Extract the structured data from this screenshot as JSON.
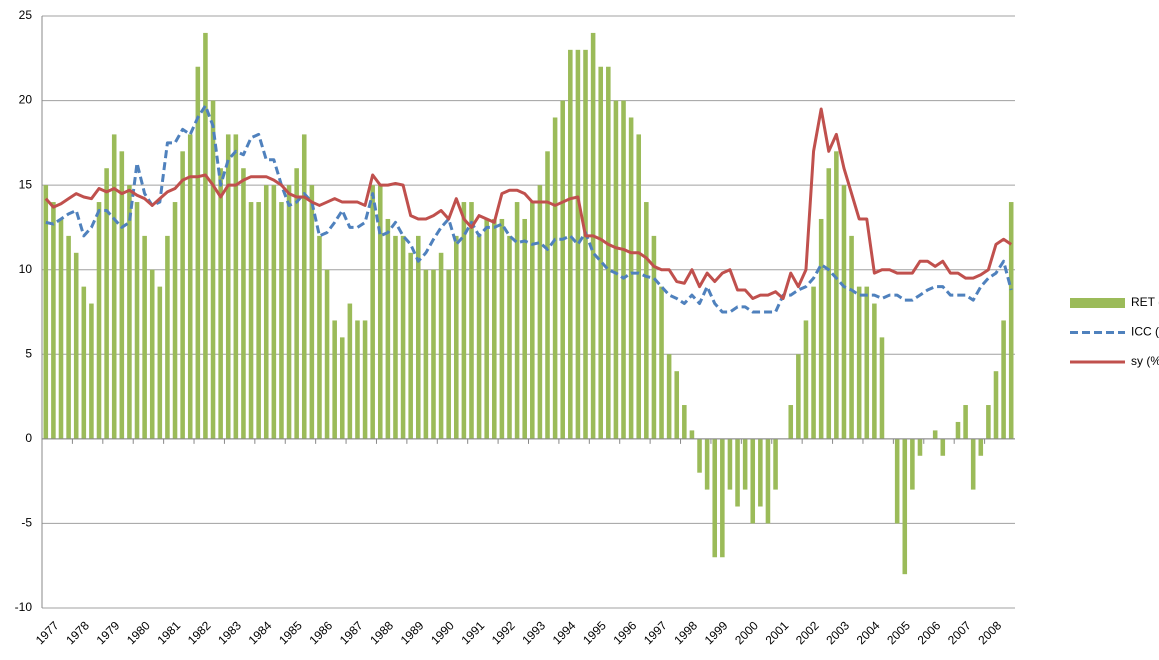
{
  "chart_data": {
    "type": "bar_line",
    "categories": [
      "1977",
      null,
      null,
      null,
      "1978",
      null,
      null,
      null,
      "1979",
      null,
      null,
      null,
      "1980",
      null,
      null,
      null,
      "1981",
      null,
      null,
      null,
      "1982",
      null,
      null,
      null,
      "1983",
      null,
      null,
      null,
      "1984",
      null,
      null,
      null,
      "1985",
      null,
      null,
      null,
      "1986",
      null,
      null,
      null,
      "1987",
      null,
      null,
      null,
      "1988",
      null,
      null,
      null,
      "1989",
      null,
      null,
      null,
      "1990",
      null,
      null,
      null,
      "1991",
      null,
      null,
      null,
      "1992",
      null,
      null,
      null,
      "1993",
      null,
      null,
      null,
      "1994",
      null,
      null,
      null,
      "1995",
      null,
      null,
      null,
      "1996",
      null,
      null,
      null,
      "1997",
      null,
      null,
      null,
      "1998",
      null,
      null,
      null,
      "1999",
      null,
      null,
      null,
      "2000",
      null,
      null,
      null,
      "2001",
      null,
      null,
      null,
      "2002",
      null,
      null,
      null,
      "2003",
      null,
      null,
      null,
      "2004",
      null,
      null,
      null,
      "2005",
      null,
      null,
      null,
      "2006",
      null,
      null,
      null,
      "2007",
      null,
      null,
      null,
      "2008",
      null,
      null,
      null
    ],
    "series": [
      {
        "name": "RET (%)",
        "kind": "bar",
        "color": "#9bbb59",
        "values": [
          15,
          14,
          13,
          12,
          11,
          9,
          8,
          14,
          16,
          18,
          17,
          15,
          14,
          12,
          10,
          9,
          12,
          14,
          17,
          18,
          22,
          24,
          20,
          16,
          18,
          18,
          16,
          14,
          14,
          15,
          15,
          14,
          15,
          16,
          18,
          15,
          12,
          10,
          7,
          6,
          8,
          7,
          7,
          15,
          15,
          13,
          12,
          12,
          11,
          12,
          10,
          10,
          11,
          10,
          12,
          14,
          14,
          12,
          13,
          13,
          13,
          12,
          14,
          13,
          14,
          15,
          17,
          19,
          20,
          23,
          23,
          23,
          24,
          22,
          22,
          20,
          20,
          19,
          18,
          14,
          12,
          9,
          5,
          4,
          2,
          0.5,
          -2,
          -3,
          -7,
          -7,
          -3,
          -4,
          -3,
          -5,
          -4,
          -5,
          -3,
          0,
          2,
          5,
          7,
          9,
          13,
          16,
          17,
          15,
          12,
          9,
          9,
          8,
          6,
          0,
          -5,
          -8,
          -3,
          -1,
          0,
          0.5,
          -1,
          0,
          1,
          2,
          -3,
          -1,
          2,
          4,
          7,
          14
        ]
      },
      {
        "name": "ICC (%)",
        "kind": "line",
        "dash": true,
        "color": "#4f81bd",
        "values": [
          12.8,
          12.7,
          13.0,
          13.3,
          13.5,
          12.0,
          12.5,
          13.5,
          13.5,
          13.0,
          12.5,
          12.8,
          16.3,
          14.5,
          13.8,
          14.0,
          17.5,
          17.5,
          18.3,
          18.0,
          19.0,
          19.7,
          18.5,
          15.0,
          16.5,
          17.0,
          16.8,
          17.8,
          18.0,
          16.5,
          16.5,
          15.0,
          13.8,
          14.0,
          14.5,
          14.0,
          12.0,
          12.2,
          12.8,
          13.5,
          12.5,
          12.5,
          12.8,
          14.5,
          12.0,
          12.2,
          12.8,
          12.0,
          11.5,
          10.5,
          11.0,
          11.8,
          12.5,
          13.0,
          11.5,
          12.0,
          12.8,
          12.0,
          12.5,
          12.5,
          12.7,
          12.0,
          11.6,
          11.7,
          11.5,
          11.6,
          11.2,
          11.8,
          11.8,
          12.0,
          11.5,
          12.2,
          11.0,
          10.5,
          10.0,
          9.8,
          9.5,
          9.8,
          9.8,
          9.6,
          9.5,
          9.0,
          8.5,
          8.3,
          8.0,
          8.5,
          8.0,
          9.0,
          8.0,
          7.5,
          7.5,
          7.8,
          7.8,
          7.5,
          7.5,
          7.5,
          7.5,
          8.5,
          8.5,
          8.8,
          9.0,
          9.5,
          10.3,
          10.0,
          9.5,
          9.0,
          8.8,
          8.5,
          8.5,
          8.5,
          8.3,
          8.5,
          8.5,
          8.2,
          8.2,
          8.5,
          8.8,
          9.0,
          9.0,
          8.5,
          8.5,
          8.5,
          8.2,
          9.0,
          9.5,
          9.8,
          10.5,
          8.8
        ]
      },
      {
        "name": "sy (%)",
        "kind": "line",
        "color": "#c0504d",
        "values": [
          14.2,
          13.7,
          13.9,
          14.2,
          14.5,
          14.3,
          14.2,
          14.8,
          14.6,
          14.8,
          14.5,
          14.7,
          14.4,
          14.2,
          13.8,
          14.2,
          14.6,
          14.8,
          15.3,
          15.5,
          15.5,
          15.6,
          15.0,
          14.3,
          15.0,
          15.0,
          15.3,
          15.5,
          15.5,
          15.5,
          15.3,
          15.0,
          14.5,
          14.3,
          14.3,
          14.0,
          13.8,
          14.0,
          14.2,
          14.0,
          14.0,
          14.0,
          13.8,
          15.6,
          15.0,
          15.0,
          15.1,
          15.0,
          13.2,
          13.0,
          13.0,
          13.2,
          13.5,
          13.0,
          14.2,
          13.0,
          12.5,
          13.2,
          13.0,
          12.8,
          14.5,
          14.7,
          14.7,
          14.5,
          14.0,
          14.0,
          14.0,
          13.8,
          14.0,
          14.2,
          14.3,
          12.0,
          12.0,
          11.8,
          11.5,
          11.3,
          11.2,
          11.0,
          11.0,
          10.7,
          10.2,
          10.0,
          10.0,
          9.3,
          9.2,
          10.0,
          9.0,
          9.8,
          9.3,
          9.8,
          10.0,
          8.8,
          8.8,
          8.3,
          8.5,
          8.5,
          8.7,
          8.3,
          9.8,
          9.0,
          10.0,
          17.0,
          19.5,
          17.0,
          18.0,
          16.0,
          14.5,
          13.0,
          13.0,
          9.8,
          10.0,
          10.0,
          9.8,
          9.8,
          9.8,
          10.5,
          10.5,
          10.2,
          10.5,
          9.8,
          9.8,
          9.5,
          9.5,
          9.7,
          10.0,
          11.5,
          11.8,
          11.5
        ]
      }
    ],
    "ylim": [
      -10,
      25
    ],
    "yticks": [
      -10,
      -5,
      0,
      5,
      10,
      15,
      20,
      25
    ],
    "grid": true,
    "legend": "right"
  }
}
